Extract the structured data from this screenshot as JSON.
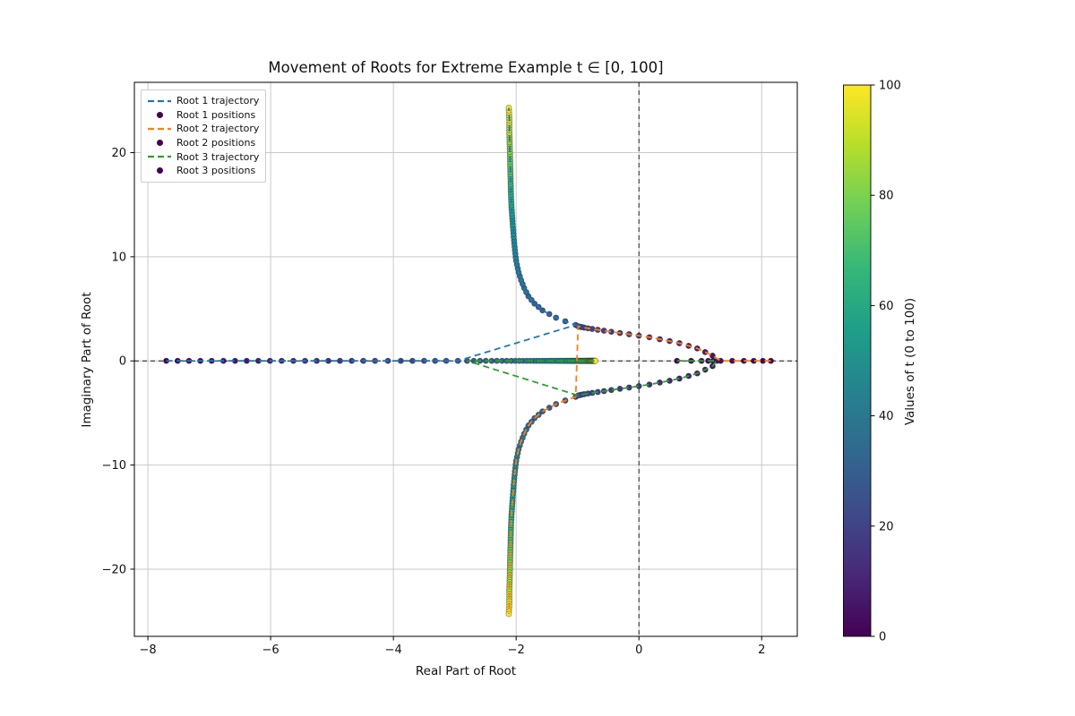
{
  "title": "Movement of Roots for Extreme Example t ∈ [0, 100]",
  "axes": {
    "xlabel": "Real Part of Root",
    "ylabel": "Imaginary Part of Root"
  },
  "legend": [
    {
      "label": "Root 1 trajectory",
      "type": "line",
      "color": "#1f77b4"
    },
    {
      "label": "Root 1 positions",
      "type": "marker",
      "color": "#440154"
    },
    {
      "label": "Root 2 trajectory",
      "type": "line",
      "color": "#ff7f0e"
    },
    {
      "label": "Root 2 positions",
      "type": "marker",
      "color": "#440154"
    },
    {
      "label": "Root 3 trajectory",
      "type": "line",
      "color": "#2ca02c"
    },
    {
      "label": "Root 3 positions",
      "type": "marker",
      "color": "#440154"
    }
  ],
  "colorbar": {
    "label": "Values of t (0 to 100)",
    "min": 0,
    "max": 100,
    "ticks": [
      0,
      20,
      40,
      60,
      80,
      100
    ]
  },
  "chart_data": {
    "type": "scatter",
    "title": "Movement of Roots for Extreme Example t ∈ [0, 100]",
    "xlabel": "Real Part of Root",
    "ylabel": "Imaginary Part of Root",
    "xlim": [
      -8.22,
      2.58
    ],
    "ylim": [
      -26.45,
      26.75
    ],
    "xticks": [
      -8,
      -6,
      -4,
      -2,
      0,
      2
    ],
    "yticks": [
      -20,
      -10,
      0,
      10,
      20
    ],
    "grid": true,
    "reference_lines": {
      "horizontal_y": 0,
      "vertical_x": 0,
      "style": "black dashed"
    },
    "t_range": [
      0,
      100
    ],
    "t_step": 1,
    "colormap": "viridis",
    "viridis_stops": [
      "#440154",
      "#482878",
      "#3e4a89",
      "#31688e",
      "#26828e",
      "#1f9e89",
      "#35b779",
      "#6ece58",
      "#b5de2b",
      "#fde725"
    ],
    "point_format": "[t, real, imag]",
    "series": [
      {
        "name": "Root 1",
        "trajectory_color": "#1f77b4",
        "points": [
          [
            0,
            -7.7,
            0
          ],
          [
            2,
            -7.33,
            0
          ],
          [
            4,
            -6.96,
            0
          ],
          [
            6,
            -6.58,
            0
          ],
          [
            8,
            -6.2,
            0
          ],
          [
            10,
            -5.82,
            0
          ],
          [
            12,
            -5.44,
            0
          ],
          [
            14,
            -5.06,
            0
          ],
          [
            16,
            -4.68,
            0
          ],
          [
            18,
            -4.3,
            0
          ],
          [
            20,
            -3.88,
            0
          ],
          [
            22,
            -3.5,
            0
          ],
          [
            24,
            -3.14,
            0
          ],
          [
            25,
            -2.95,
            0
          ],
          [
            26,
            -1.03,
            3.45
          ],
          [
            27,
            -1.2,
            3.8
          ],
          [
            28,
            -1.35,
            4.15
          ],
          [
            30,
            -1.57,
            4.85
          ],
          [
            32,
            -1.7,
            5.5
          ],
          [
            34,
            -1.8,
            6.2
          ],
          [
            36,
            -1.87,
            7.0
          ],
          [
            38,
            -1.92,
            7.75
          ],
          [
            40,
            -1.96,
            8.5
          ],
          [
            43,
            -2.0,
            9.6
          ],
          [
            46,
            -2.02,
            10.6
          ],
          [
            50,
            -2.04,
            11.9
          ],
          [
            55,
            -2.06,
            13.4
          ],
          [
            60,
            -2.075,
            14.7
          ],
          [
            65,
            -2.085,
            16.0
          ],
          [
            70,
            -2.09,
            17.2
          ],
          [
            75,
            -2.095,
            18.4
          ],
          [
            80,
            -2.1,
            19.6
          ],
          [
            85,
            -2.105,
            20.8
          ],
          [
            90,
            -2.11,
            21.9
          ],
          [
            95,
            -2.11,
            23.1
          ],
          [
            100,
            -2.12,
            24.3
          ]
        ]
      },
      {
        "name": "Root 2",
        "trajectory_color": "#ff7f0e",
        "points": [
          [
            0,
            2.15,
            0
          ],
          [
            1,
            2.02,
            0
          ],
          [
            2,
            1.87,
            0
          ],
          [
            3,
            1.71,
            0
          ],
          [
            4,
            1.52,
            0
          ],
          [
            5,
            1.33,
            0
          ],
          [
            6,
            1.2,
            0.5
          ],
          [
            7,
            1.08,
            0.85
          ],
          [
            8,
            0.95,
            1.2
          ],
          [
            9,
            0.81,
            1.45
          ],
          [
            10,
            0.66,
            1.7
          ],
          [
            11,
            0.5,
            1.9
          ],
          [
            12,
            0.34,
            2.08
          ],
          [
            13,
            0.17,
            2.27
          ],
          [
            14,
            0.0,
            2.42
          ],
          [
            15,
            -0.16,
            2.56
          ],
          [
            16,
            -0.31,
            2.68
          ],
          [
            17,
            -0.45,
            2.8
          ],
          [
            18,
            -0.57,
            2.9
          ],
          [
            19,
            -0.67,
            2.99
          ],
          [
            20,
            -0.76,
            3.07
          ],
          [
            21,
            -0.83,
            3.13
          ],
          [
            22,
            -0.89,
            3.19
          ],
          [
            23,
            -0.93,
            3.24
          ],
          [
            24,
            -0.96,
            3.28
          ],
          [
            25,
            -0.99,
            3.32
          ],
          [
            26,
            -1.03,
            -3.45
          ],
          [
            27,
            -1.2,
            -3.8
          ],
          [
            28,
            -1.35,
            -4.15
          ],
          [
            30,
            -1.57,
            -4.85
          ],
          [
            32,
            -1.7,
            -5.5
          ],
          [
            34,
            -1.8,
            -6.2
          ],
          [
            36,
            -1.87,
            -7.0
          ],
          [
            38,
            -1.92,
            -7.75
          ],
          [
            40,
            -1.96,
            -8.5
          ],
          [
            43,
            -2.0,
            -9.6
          ],
          [
            46,
            -2.02,
            -10.6
          ],
          [
            50,
            -2.04,
            -11.9
          ],
          [
            55,
            -2.06,
            -13.4
          ],
          [
            60,
            -2.075,
            -14.7
          ],
          [
            65,
            -2.085,
            -16.0
          ],
          [
            70,
            -2.09,
            -17.2
          ],
          [
            75,
            -2.095,
            -18.4
          ],
          [
            80,
            -2.1,
            -19.6
          ],
          [
            85,
            -2.105,
            -20.8
          ],
          [
            90,
            -2.11,
            -21.9
          ],
          [
            95,
            -2.11,
            -23.1
          ],
          [
            100,
            -2.12,
            -24.3
          ]
        ]
      },
      {
        "name": "Root 3",
        "trajectory_color": "#2ca02c",
        "points": [
          [
            0,
            0.62,
            0
          ],
          [
            1,
            0.85,
            0
          ],
          [
            2,
            1.02,
            0
          ],
          [
            3,
            1.13,
            0
          ],
          [
            4,
            1.21,
            0
          ],
          [
            5,
            1.27,
            0
          ],
          [
            6,
            1.2,
            -0.5
          ],
          [
            7,
            1.08,
            -0.85
          ],
          [
            8,
            0.95,
            -1.2
          ],
          [
            9,
            0.81,
            -1.45
          ],
          [
            10,
            0.66,
            -1.7
          ],
          [
            11,
            0.5,
            -1.9
          ],
          [
            12,
            0.34,
            -2.08
          ],
          [
            13,
            0.17,
            -2.27
          ],
          [
            14,
            0.0,
            -2.42
          ],
          [
            15,
            -0.16,
            -2.56
          ],
          [
            16,
            -0.31,
            -2.68
          ],
          [
            17,
            -0.45,
            -2.8
          ],
          [
            18,
            -0.57,
            -2.9
          ],
          [
            19,
            -0.67,
            -2.99
          ],
          [
            20,
            -0.76,
            -3.07
          ],
          [
            21,
            -0.83,
            -3.13
          ],
          [
            22,
            -0.89,
            -3.19
          ],
          [
            23,
            -0.93,
            -3.24
          ],
          [
            24,
            -0.96,
            -3.28
          ],
          [
            25,
            -0.99,
            -3.32
          ],
          [
            26,
            -2.8,
            0
          ],
          [
            27,
            -2.69,
            0
          ],
          [
            28,
            -2.59,
            0
          ],
          [
            30,
            -2.4,
            0
          ],
          [
            32,
            -2.23,
            0
          ],
          [
            34,
            -2.08,
            0
          ],
          [
            36,
            -1.95,
            0
          ],
          [
            38,
            -1.83,
            0
          ],
          [
            40,
            -1.72,
            0
          ],
          [
            43,
            -1.58,
            0
          ],
          [
            46,
            -1.46,
            0
          ],
          [
            50,
            -1.33,
            0
          ],
          [
            55,
            -1.2,
            0
          ],
          [
            60,
            -1.1,
            0
          ],
          [
            65,
            -1.02,
            0
          ],
          [
            70,
            -0.95,
            0
          ],
          [
            75,
            -0.89,
            0
          ],
          [
            80,
            -0.84,
            0
          ],
          [
            85,
            -0.8,
            0
          ],
          [
            90,
            -0.77,
            0
          ],
          [
            95,
            -0.74,
            0
          ],
          [
            100,
            -0.71,
            0
          ]
        ]
      }
    ]
  }
}
